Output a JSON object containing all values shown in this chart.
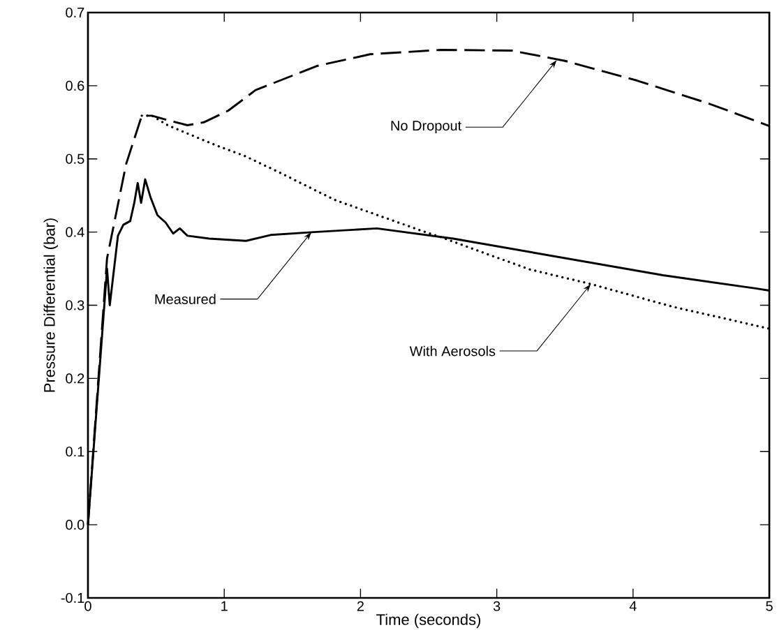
{
  "chart_data": {
    "type": "line",
    "xlabel": "Time (seconds)",
    "ylabel": "Pressure Differential (bar)",
    "xlim": [
      0,
      5
    ],
    "ylim": [
      -0.1,
      0.7
    ],
    "xticks": [
      0,
      1,
      2,
      3,
      4,
      5
    ],
    "yticks": [
      -0.1,
      {
        "value": 0,
        "label": "0.0"
      },
      0.1,
      0.2,
      0.3,
      0.4,
      0.5,
      0.6,
      0.7
    ],
    "grid": false,
    "marker": "none",
    "series": [
      {
        "color": "#000000",
        "line_style": "solid",
        "x": [
          0,
          0.14,
          0.16,
          0.22,
          0.26,
          0.31,
          0.34,
          0.365,
          0.39,
          0.42,
          0.46,
          0.51,
          0.57,
          0.625,
          0.674,
          0.73,
          0.89,
          1.16,
          1.34,
          1.66,
          2.12,
          2.68,
          3.45,
          4.22,
          4.9,
          5
        ],
        "values": [
          0,
          0.35,
          0.3,
          0.395,
          0.41,
          0.415,
          0.44,
          0.467,
          0.44,
          0.472,
          0.447,
          0.423,
          0.413,
          0.398,
          0.405,
          0.395,
          0.391,
          0.388,
          0.396,
          0.4,
          0.405,
          0.391,
          0.366,
          0.341,
          0.323,
          0.32
        ]
      },
      {
        "color": "#000000",
        "line_style": "dashed",
        "x": [
          0,
          0.14,
          0.28,
          0.395,
          0.47,
          0.585,
          0.73,
          0.85,
          1.03,
          1.23,
          1.68,
          2.07,
          2.59,
          3.11,
          3.5,
          4.03,
          4.55,
          5
        ],
        "values": [
          0,
          0.364,
          0.493,
          0.559,
          0.559,
          0.553,
          0.546,
          0.55,
          0.566,
          0.594,
          0.627,
          0.643,
          0.649,
          0.648,
          0.634,
          0.607,
          0.576,
          0.545
        ]
      },
      {
        "color": "#000000",
        "line_style": "dotted",
        "x": [
          0.395,
          0.47,
          0.585,
          0.92,
          1.15,
          1.41,
          1.81,
          2.46,
          2.59,
          3.24,
          3.69,
          4.29,
          5
        ],
        "values": [
          0.559,
          0.559,
          0.546,
          0.52,
          0.504,
          0.481,
          0.444,
          0.401,
          0.393,
          0.349,
          0.329,
          0.298,
          0.268
        ]
      }
    ],
    "annotations": [
      {
        "text": "No Dropout",
        "x": 3.44,
        "y": 0.635
      },
      {
        "text": "Measured",
        "x": 1.64,
        "y": 0.4
      },
      {
        "text": "With Aerosols",
        "x": 3.69,
        "y": 0.329
      }
    ]
  }
}
